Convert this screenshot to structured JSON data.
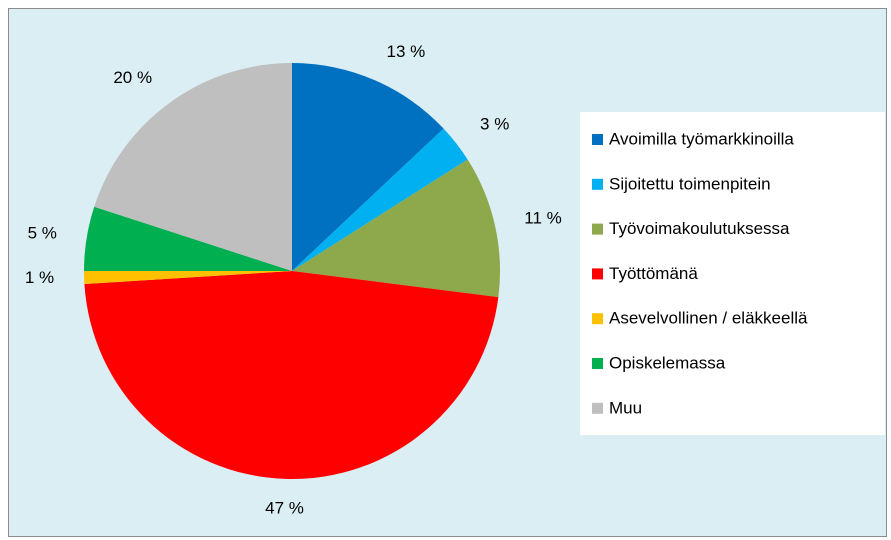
{
  "chart_data": {
    "type": "pie",
    "categories": [
      "Avoimilla työmarkkinoilla",
      "Sijoitettu toimenpitein",
      "Työvoimakoulutuksessa",
      "Työttömänä",
      "Asevelvollinen / eläkkeellä",
      "Opiskelemassa",
      "Muu"
    ],
    "values": [
      13,
      3,
      11,
      47,
      1,
      5,
      20
    ],
    "value_labels": [
      "13 %",
      "3 %",
      "11 %",
      "47 %",
      "1 %",
      "5 %",
      "20 %"
    ],
    "colors": [
      "#0070c0",
      "#00b0f0",
      "#8ea84c",
      "#ff0000",
      "#ffc000",
      "#00b050",
      "#bfbfbf"
    ],
    "legend": "right"
  }
}
